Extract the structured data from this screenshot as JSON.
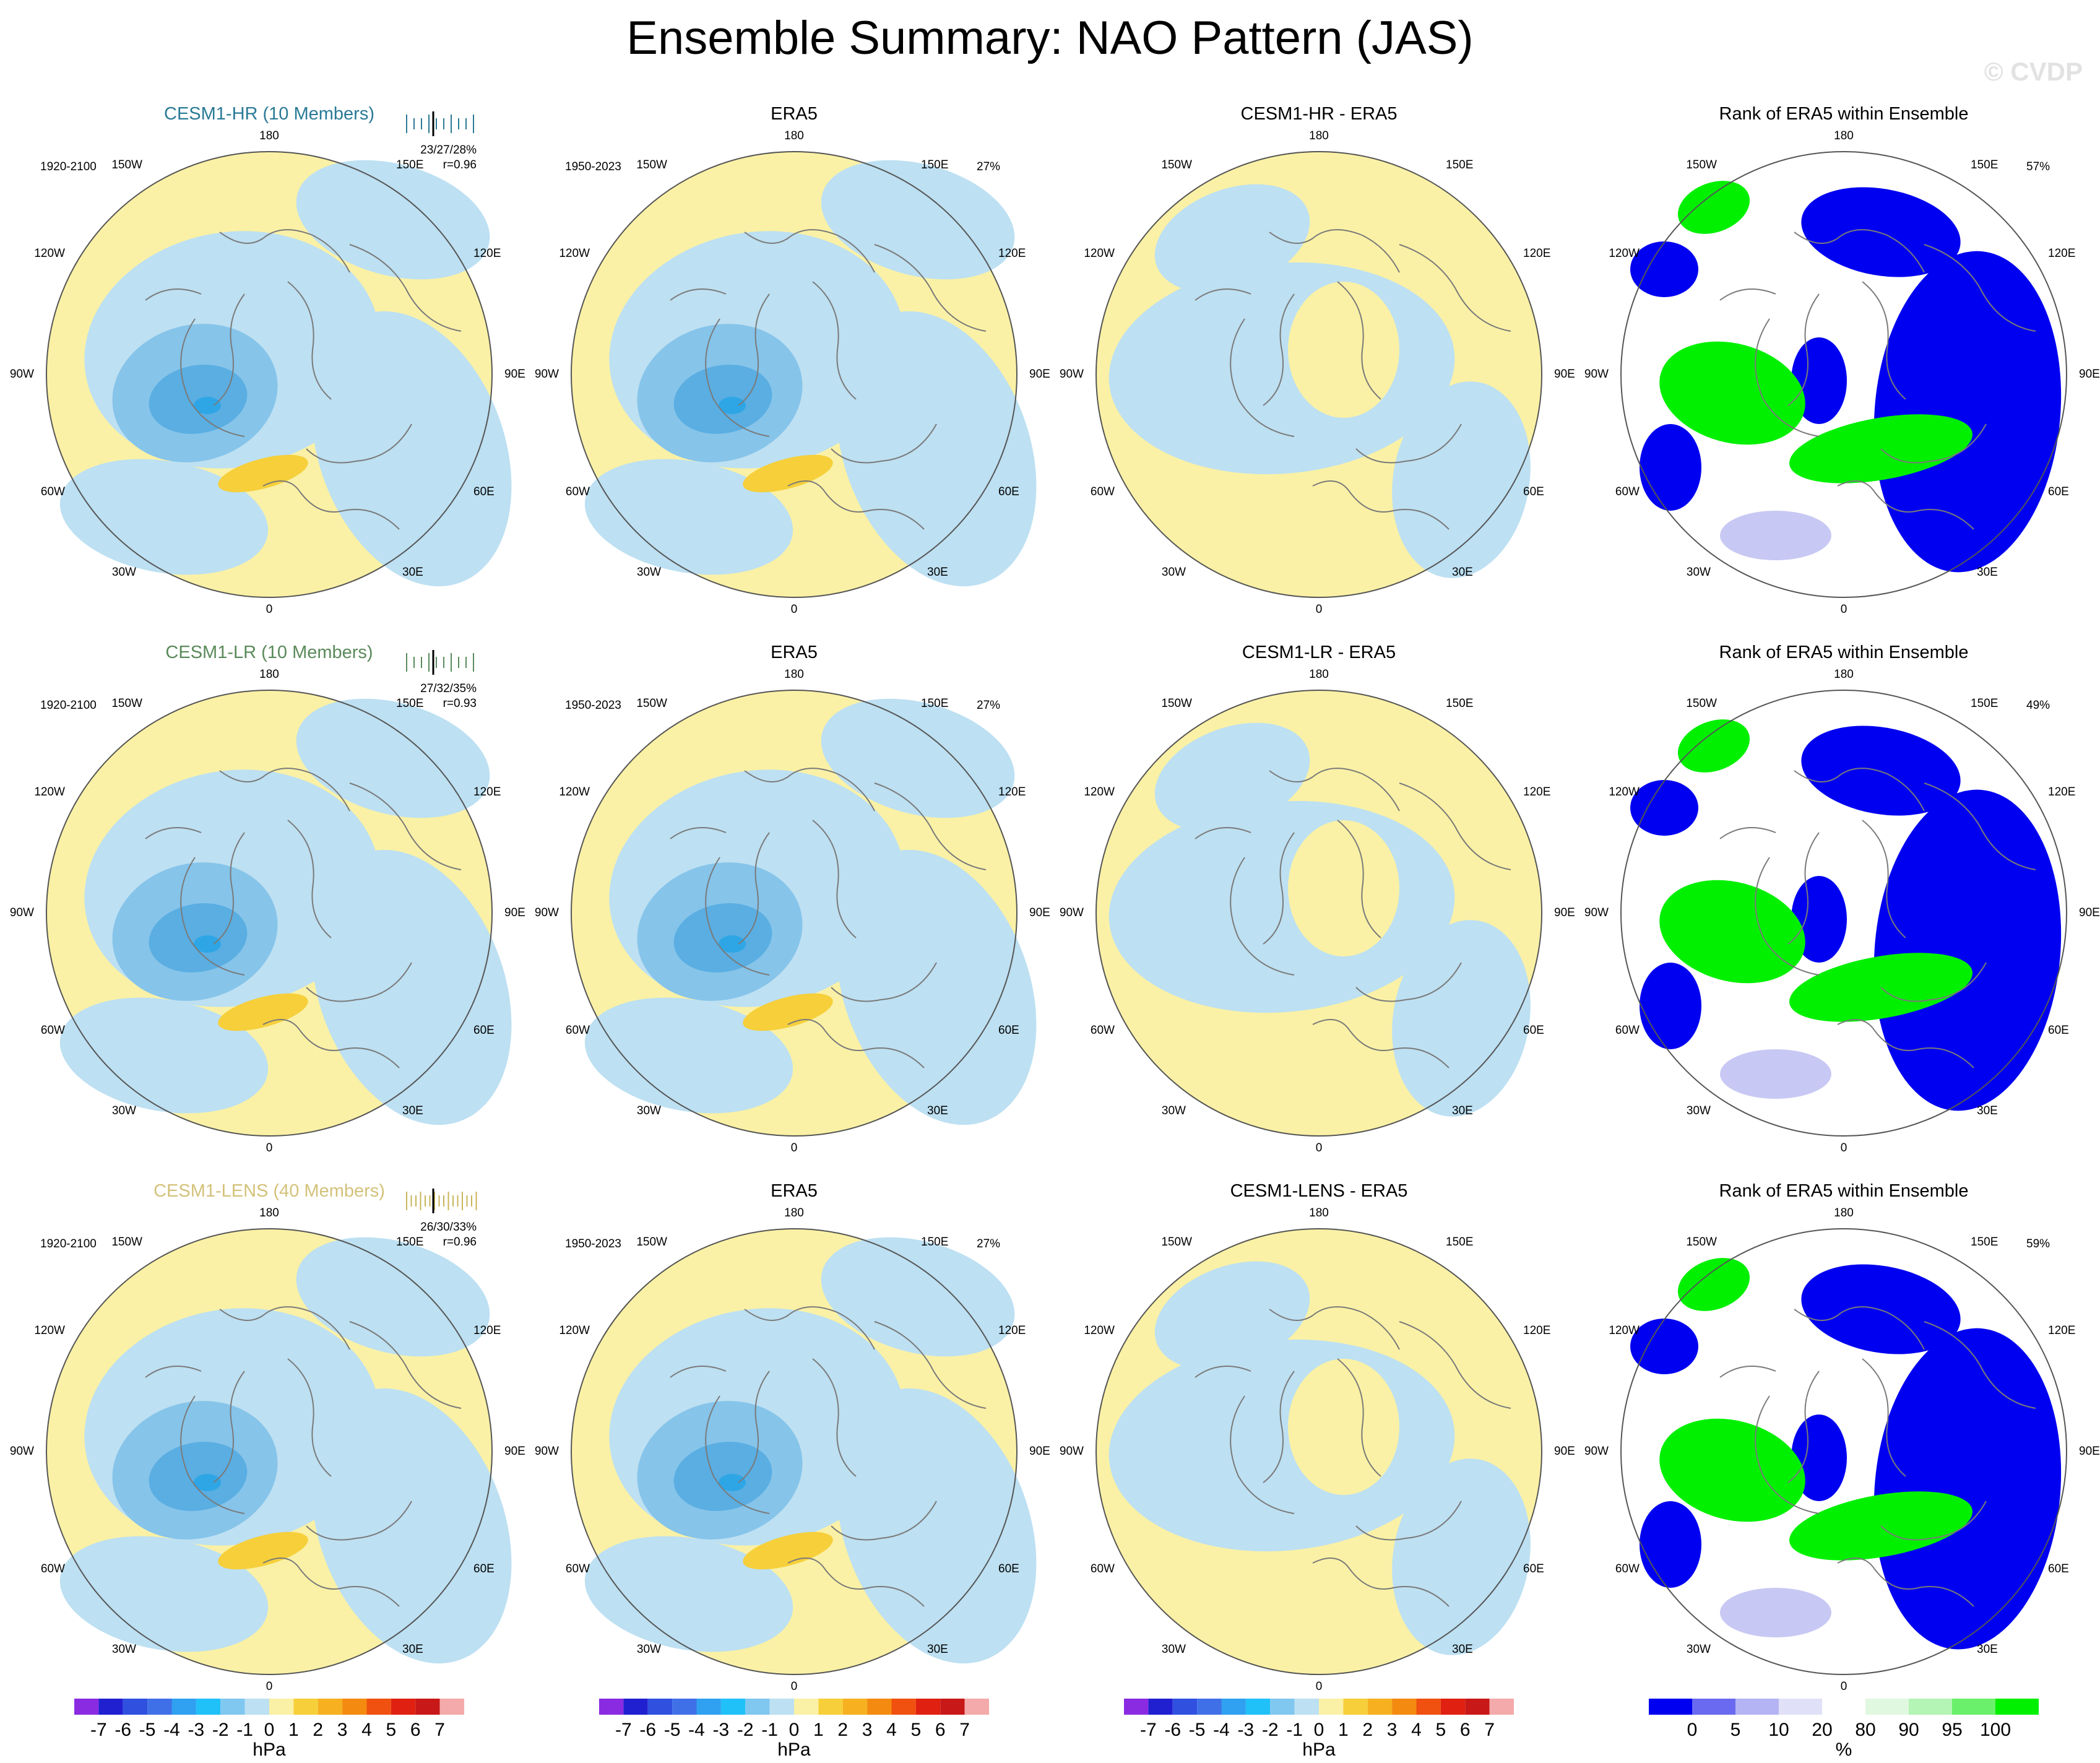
{
  "page_title": "Ensemble Summary: NAO Pattern (JAS)",
  "watermark": "© CVDP",
  "colors": {
    "neg1": "#bde0f2",
    "neg2": "#86c4ea",
    "neg3": "#5aaee2",
    "neg4": "#2ea6e6",
    "pos1": "#faf1a6",
    "pos2": "#f6cf3a",
    "rank_blue": "#0000f0",
    "rank_blue_light": "#c8c8f4",
    "rank_green": "#00f000",
    "rank_green_light": "#e0f8e0"
  },
  "lon_labels": [
    "180",
    "150E",
    "120E",
    "90E",
    "60E",
    "30E",
    "0",
    "30W",
    "60W",
    "90W",
    "120W",
    "150W"
  ],
  "rows": [
    {
      "model": {
        "title": "CESM1-HR (10 Members)",
        "title_color": "#2a7a96",
        "years": "1920-2100",
        "stat_line1": "23/27/28%",
        "stat_line2": "r=0.96",
        "tick_color": "#2a7a96"
      },
      "obs": {
        "title": "ERA5",
        "years": "1950-2023",
        "pct": "27%"
      },
      "diff": {
        "title": "CESM1-HR - ERA5"
      },
      "rank": {
        "title": "Rank of ERA5 within Ensemble",
        "pct": "57%"
      }
    },
    {
      "model": {
        "title": "CESM1-LR (10 Members)",
        "title_color": "#5a8a5a",
        "years": "1920-2100",
        "stat_line1": "27/32/35%",
        "stat_line2": "r=0.93",
        "tick_color": "#5a8a5a"
      },
      "obs": {
        "title": "ERA5",
        "years": "1950-2023",
        "pct": "27%"
      },
      "diff": {
        "title": "CESM1-LR - ERA5"
      },
      "rank": {
        "title": "Rank of ERA5 within Ensemble",
        "pct": "49%"
      }
    },
    {
      "model": {
        "title": "CESM1-LENS (40 Members)",
        "title_color": "#d4c27a",
        "years": "1920-2100",
        "stat_line1": "26/30/33%",
        "stat_line2": "r=0.96",
        "tick_color": "#c8b45a"
      },
      "obs": {
        "title": "ERA5",
        "years": "1950-2023",
        "pct": "27%"
      },
      "diff": {
        "title": "CESM1-LENS - ERA5"
      },
      "rank": {
        "title": "Rank of ERA5 within Ensemble",
        "pct": "59%"
      }
    }
  ],
  "colorbar_hpa": {
    "units": "hPa",
    "labels": [
      "-7",
      "-6",
      "-5",
      "-4",
      "-3",
      "-2",
      "-1",
      "0",
      "1",
      "2",
      "3",
      "4",
      "5",
      "6",
      "7"
    ],
    "colors": [
      "#8a2be2",
      "#2020d0",
      "#3050e0",
      "#4070e8",
      "#30a0f0",
      "#20c0f8",
      "#80c8f0",
      "#bde0f2",
      "#faf1a6",
      "#f6cf3a",
      "#f6b020",
      "#f48a10",
      "#f05010",
      "#e02010",
      "#c81818",
      "#f4aaaa"
    ]
  },
  "colorbar_rank": {
    "units": "%",
    "labels": [
      "0",
      "5",
      "10",
      "20",
      "80",
      "90",
      "95",
      "100"
    ],
    "colors": [
      "#0000f0",
      "#6a6af0",
      "#b4b4f4",
      "#e0e0f8",
      "#ffffff",
      "#e0f8e0",
      "#b4f4b4",
      "#6af06a",
      "#00f000"
    ]
  }
}
